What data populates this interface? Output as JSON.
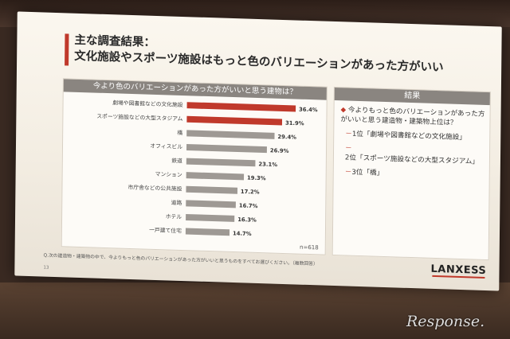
{
  "slide": {
    "title_line1": "主な調査結果：",
    "title_line2": "文化施設やスポーツ施設はもっと色のバリエーションがあった方がいい",
    "chart_panel_title": "今より色のバリエーションがあった方がいいと思う建物は？",
    "summary_panel_title": "結果",
    "summary_lead": "今よりもっと色のバリエーションがあった方がいいと思う建造物・建築物上位は？",
    "summary_bullet": "◆",
    "rankings": [
      {
        "text": "1位「劇場や図書館などの文化施設」"
      },
      {
        "text": "2位「スポーツ施設などの大型スタジアム」"
      },
      {
        "text": "3位「橋」"
      }
    ],
    "rank_dash": "－",
    "footnote": "Q.次の建造物・建築物の中で、今よりもっと色のバリエーションがあった方がいいと思うものをすべてお選びください。（複数回答）",
    "page_number": "13",
    "logo": "LANXESS",
    "watermark": "Response."
  },
  "chart_data": {
    "type": "bar",
    "orientation": "horizontal",
    "categories": [
      "劇場や図書館などの文化施設",
      "スポーツ施設などの大型スタジアム",
      "橋",
      "オフィスビル",
      "鉄道",
      "マンション",
      "市庁舎などの公共施設",
      "道路",
      "ホテル",
      "一戸建て住宅"
    ],
    "values": [
      36.4,
      31.9,
      29.4,
      26.9,
      23.1,
      19.3,
      17.2,
      16.7,
      16.3,
      14.7
    ],
    "value_labels": [
      "36.4%",
      "31.9%",
      "29.4%",
      "26.9%",
      "23.1%",
      "19.3%",
      "17.2%",
      "16.7%",
      "16.3%",
      "14.7%"
    ],
    "highlight_count": 2,
    "colors": {
      "highlight": "#c0392b",
      "normal": "#9e9994"
    },
    "xlim": [
      0,
      40
    ],
    "note": "n=618",
    "title": "今より色のバリエーションがあった方がいいと思う建物は？"
  }
}
